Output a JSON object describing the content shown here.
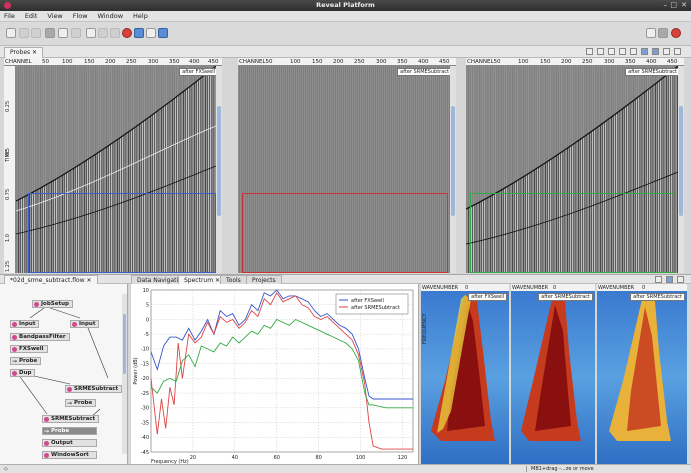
{
  "window": {
    "title": "Reveal Platform"
  },
  "menubar": [
    "File",
    "Edit",
    "View",
    "Flow",
    "Window",
    "Help"
  ],
  "probes_tab": {
    "label": "Probes ✕"
  },
  "panes": [
    {
      "header": [
        "CHANNEL",
        "50",
        "100",
        "150",
        "200",
        "250",
        "300",
        "350",
        "400",
        "450"
      ],
      "chip": "after FXSwell",
      "axis_label": "TIME",
      "ticks": [
        "0.25",
        "0.5",
        "0.75",
        "1.0",
        "1.25"
      ]
    },
    {
      "header": [
        "CHANNEL50",
        "100",
        "150",
        "200",
        "250",
        "300",
        "350",
        "400",
        "450"
      ],
      "chip": "after SRMESubtract",
      "axis_label": "",
      "ticks": []
    },
    {
      "header": [
        "CHANNEL50",
        "100",
        "150",
        "200",
        "250",
        "300",
        "350",
        "400",
        "450"
      ],
      "chip": "after SRMESubtract",
      "axis_label": "",
      "ticks": []
    }
  ],
  "flow_tab": {
    "label": "*02d_srme_subtract.flow ✕"
  },
  "flow_nodes": [
    "JobSetup",
    "Input",
    "BandpassFilter",
    "FXSwell",
    "Probe",
    "Dup",
    "SRMESubtract",
    "Probe",
    "SRMESubtract",
    "Probe",
    "Output",
    "WindowSort",
    "Input"
  ],
  "bottom_tabs": [
    "Data Navigation",
    "Spectrum ✕",
    "Tools",
    "Projects"
  ],
  "chart_data": {
    "type": "line",
    "xlabel": "Frequency (Hz)",
    "ylabel": "Power (dB)",
    "xlim": [
      0,
      125
    ],
    "ylim": [
      -45,
      10
    ],
    "xticks": [
      20,
      40,
      60,
      80,
      100,
      120
    ],
    "yticks": [
      10,
      5,
      0,
      -5,
      -10,
      -15,
      -20,
      -25,
      -30,
      -35,
      -40,
      -45
    ],
    "legend_position": "top-right",
    "series": [
      {
        "name": "after FXSwell",
        "color": "#3355cc",
        "x": [
          0,
          3,
          6,
          9,
          12,
          15,
          18,
          21,
          24,
          27,
          30,
          33,
          36,
          39,
          42,
          45,
          48,
          51,
          54,
          57,
          60,
          63,
          66,
          69,
          72,
          75,
          78,
          81,
          84,
          87,
          90,
          93,
          96,
          99,
          102,
          104,
          106,
          108,
          112,
          118,
          125
        ],
        "y": [
          -11,
          -17,
          -9,
          -6,
          -6,
          -7,
          -3,
          -7,
          -4,
          0,
          -5,
          3,
          1,
          2,
          -2,
          0,
          5,
          3,
          9,
          8,
          10,
          7,
          8,
          8,
          7,
          6,
          3,
          1,
          2,
          0,
          -2,
          -3,
          -5,
          -10,
          -20,
          -26,
          -27,
          -27,
          -27,
          -27,
          -27
        ]
      },
      {
        "name": "after SRMESubtract",
        "color": "#dd4444",
        "x": [
          0,
          3,
          5,
          7,
          9,
          11,
          13,
          15,
          18,
          21,
          24,
          27,
          30,
          33,
          36,
          39,
          42,
          45,
          48,
          51,
          54,
          57,
          60,
          63,
          66,
          69,
          72,
          75,
          78,
          81,
          84,
          87,
          90,
          93,
          96,
          99,
          102,
          104,
          106,
          110,
          118,
          125
        ],
        "y": [
          -20,
          -39,
          -27,
          -37,
          -23,
          -29,
          -8,
          -20,
          -5,
          -8,
          -6,
          -1,
          -5,
          1,
          -1,
          0,
          -3,
          -1,
          3,
          1,
          7,
          5,
          9,
          6,
          7,
          8,
          5,
          4,
          1,
          0,
          1,
          -1,
          -3,
          -5,
          -7,
          -12,
          -22,
          -35,
          -43,
          -44,
          -44,
          -44
        ]
      },
      {
        "name": "",
        "color": "#33aa44",
        "x": [
          0,
          3,
          6,
          9,
          12,
          15,
          18,
          21,
          24,
          27,
          30,
          33,
          36,
          39,
          42,
          45,
          48,
          51,
          54,
          57,
          60,
          63,
          66,
          69,
          72,
          75,
          78,
          81,
          84,
          87,
          90,
          93,
          96,
          99,
          102,
          104,
          106,
          112,
          118,
          125
        ],
        "y": [
          -23,
          -25,
          -21,
          -20,
          -21,
          -14,
          -12,
          -16,
          -9,
          -10,
          -11,
          -8,
          -9,
          -6,
          -8,
          -6,
          -4,
          -5,
          -2,
          -3,
          0,
          -1,
          -2,
          0,
          -1,
          -2,
          -3,
          -4,
          -5,
          -6,
          -7,
          -8,
          -10,
          -14,
          -25,
          -29,
          -29,
          -30,
          -30,
          -30
        ]
      }
    ]
  },
  "fk_panels": [
    {
      "header": [
        "WAVENUMBER",
        "0"
      ],
      "chip": "after FXSwell",
      "axis_label": "FREQUENCY"
    },
    {
      "header": [
        "WAVENUMBER",
        "0"
      ],
      "chip": "after SRMESubtract"
    },
    {
      "header": [
        "WAVENUMBER",
        "0"
      ],
      "chip": "after SRMESubtract"
    }
  ],
  "status": {
    "hint": "MB1+drag -...ze or move"
  }
}
